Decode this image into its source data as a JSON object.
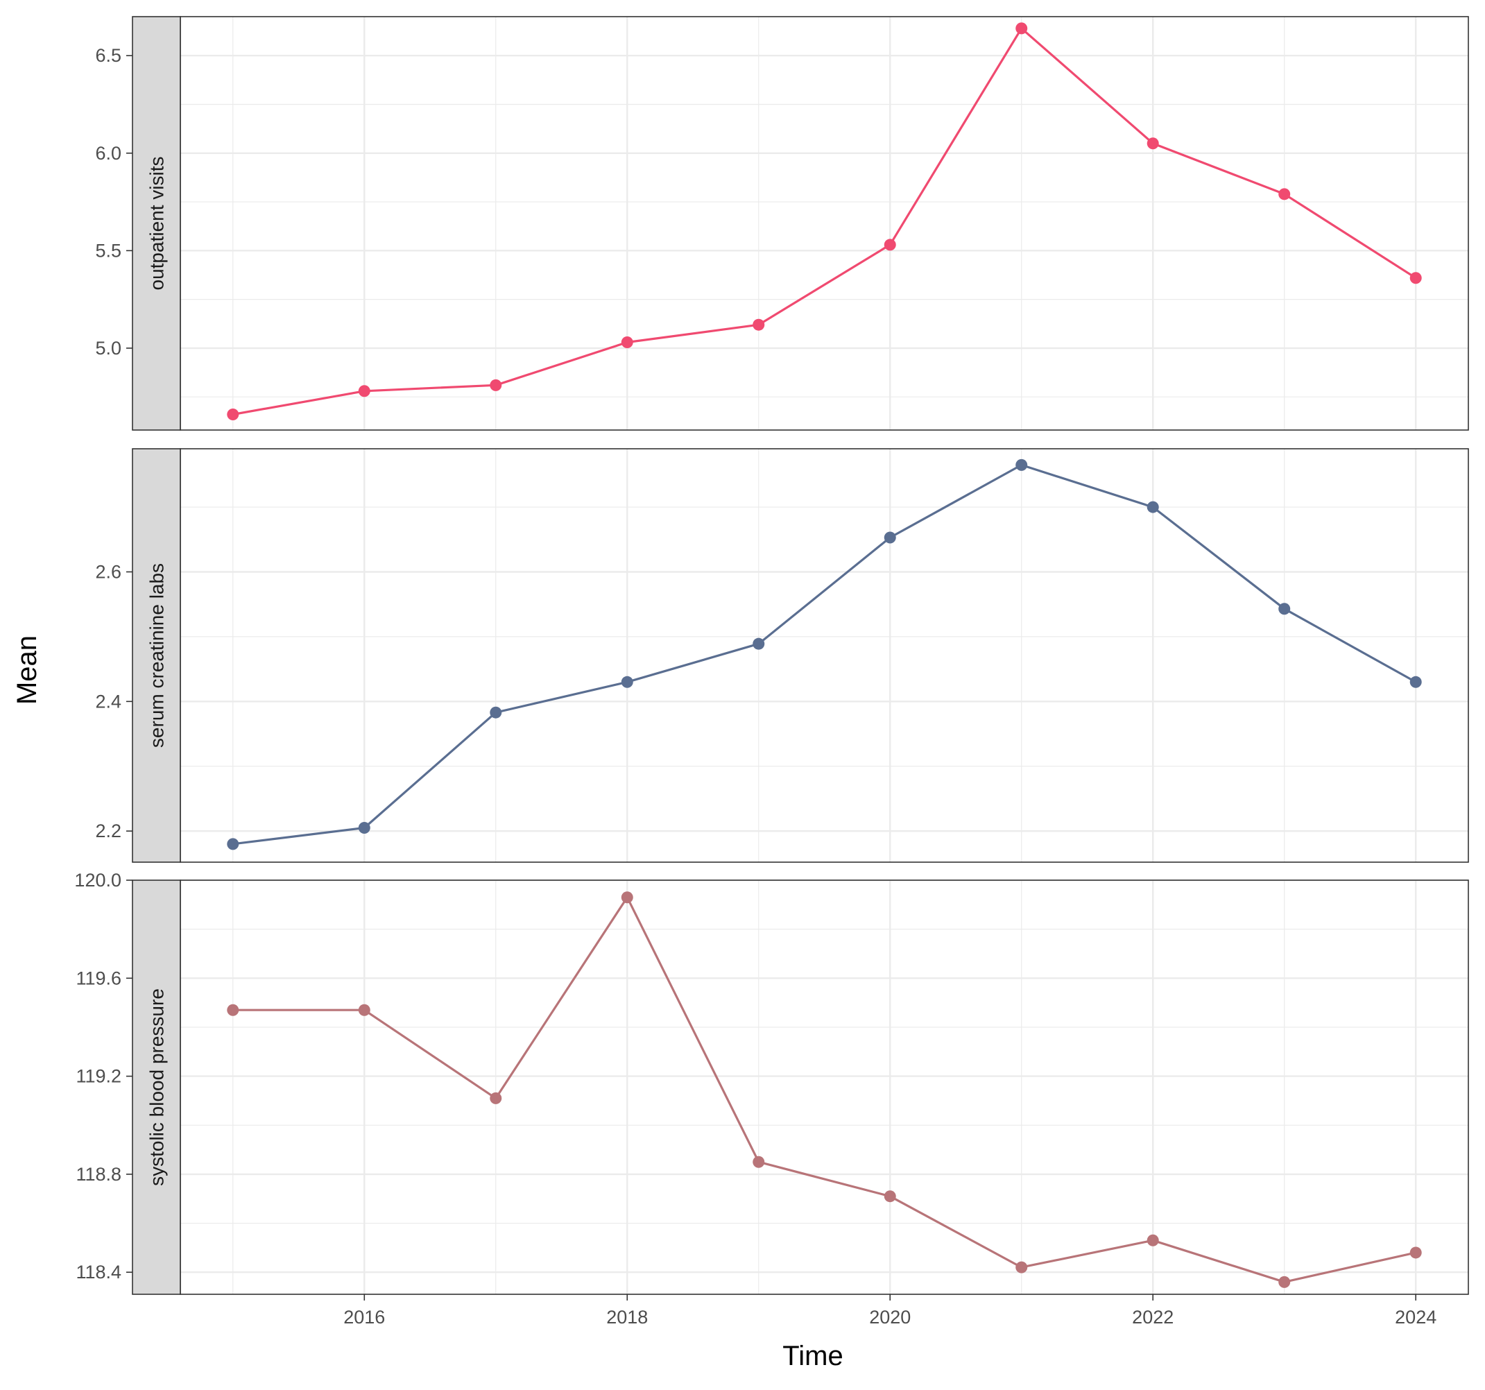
{
  "chart_data": {
    "type": "line",
    "layout": "faceted",
    "xlabel": "Time",
    "ylabel": "Mean",
    "x": [
      2015,
      2016,
      2017,
      2018,
      2019,
      2020,
      2021,
      2022,
      2023,
      2024
    ],
    "xlim": [
      2014.6,
      2024.4
    ],
    "xticks": [
      2016,
      2018,
      2020,
      2022,
      2024
    ],
    "xtick_labels": [
      "2016",
      "2018",
      "2020",
      "2022",
      "2024"
    ],
    "grid": true,
    "legend": "none",
    "panels": [
      {
        "strip_label": "outpatient visits",
        "color": "#f04a70",
        "ylim": [
          4.58,
          6.7
        ],
        "yticks": [
          5.0,
          5.5,
          6.0,
          6.5
        ],
        "ytick_labels": [
          "5.0",
          "5.5",
          "6.0",
          "6.5"
        ],
        "values": [
          4.66,
          4.78,
          4.81,
          5.03,
          5.12,
          5.53,
          6.64,
          6.05,
          5.79,
          5.36
        ]
      },
      {
        "strip_label": "serum creatinine labs",
        "color": "#5a6e91",
        "ylim": [
          2.152,
          2.79
        ],
        "yticks": [
          2.2,
          2.4,
          2.6
        ],
        "ytick_labels": [
          "2.2",
          "2.4",
          "2.6"
        ],
        "values": [
          2.18,
          2.205,
          2.383,
          2.43,
          2.489,
          2.653,
          2.765,
          2.7,
          2.543,
          2.43
        ]
      },
      {
        "strip_label": "systolic blood pressure",
        "color": "#b87478",
        "ylim": [
          118.31,
          120.0
        ],
        "yticks": [
          118.4,
          118.8,
          119.2,
          119.6,
          120.0
        ],
        "ytick_labels": [
          "118.4",
          "118.8",
          "119.2",
          "119.6",
          "120.0"
        ],
        "values": [
          119.47,
          119.47,
          119.11,
          119.93,
          118.85,
          118.71,
          118.42,
          118.53,
          118.36,
          118.48
        ]
      }
    ]
  }
}
